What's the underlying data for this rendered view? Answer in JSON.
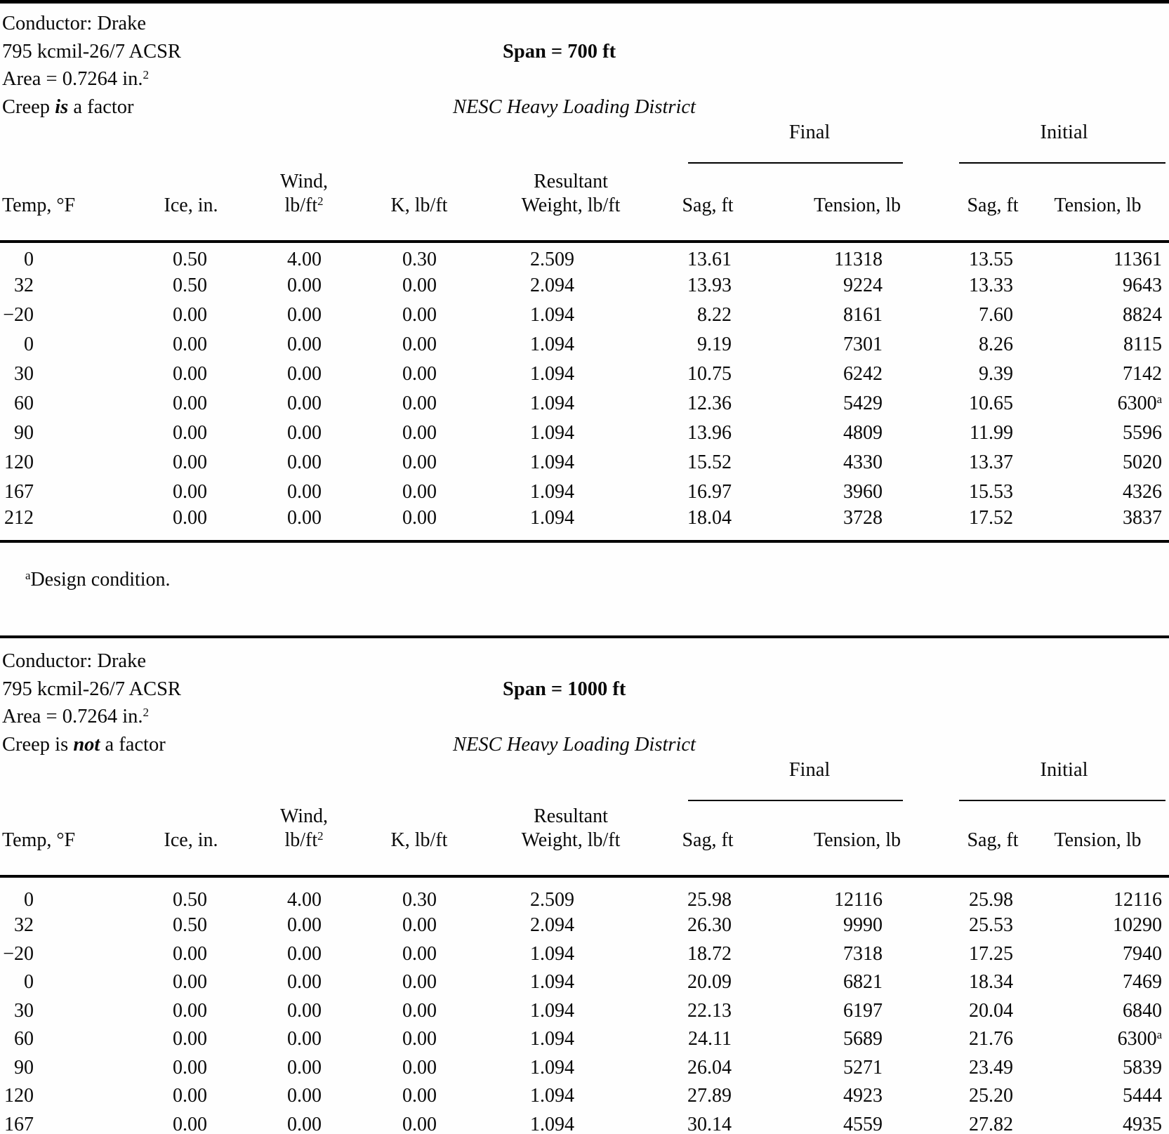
{
  "tables": [
    {
      "conductor": "Conductor: Drake",
      "size": "795 kcmil-26/7 ACSR",
      "span_label": "Span = 700 ft",
      "area_text": "Area = 0.7264 in.",
      "area_sup": "2",
      "creep_pre": "Creep ",
      "creep_emph": "is",
      "creep_post": " a factor",
      "district": "NESC Heavy Loading District",
      "groups": {
        "final": "Final",
        "initial": "Initial"
      },
      "columns": {
        "temp": "Temp, °F",
        "ice": "Ice, in.",
        "wind_line1": "Wind,",
        "wind_line2": "lb/ft",
        "wind_sup": "2",
        "k": "K, lb/ft",
        "resultant_line1": "Resultant",
        "resultant_line2": "Weight, lb/ft",
        "sag": "Sag, ft",
        "tension": "Tension, lb"
      },
      "rows": [
        [
          "0",
          "0.50",
          "4.00",
          "0.30",
          "2.509",
          "13.61",
          "11318",
          "13.55",
          "11361"
        ],
        [
          "32",
          "0.50",
          "0.00",
          "0.00",
          "2.094",
          "13.93",
          "9224",
          "13.33",
          "9643"
        ],
        [
          "−20",
          "0.00",
          "0.00",
          "0.00",
          "1.094",
          "8.22",
          "8161",
          "7.60",
          "8824"
        ],
        [
          "0",
          "0.00",
          "0.00",
          "0.00",
          "1.094",
          "9.19",
          "7301",
          "8.26",
          "8115"
        ],
        [
          "30",
          "0.00",
          "0.00",
          "0.00",
          "1.094",
          "10.75",
          "6242",
          "9.39",
          "7142"
        ],
        [
          "60",
          "0.00",
          "0.00",
          "0.00",
          "1.094",
          "12.36",
          "5429",
          "10.65",
          [
            "6300",
            "a"
          ]
        ],
        [
          "90",
          "0.00",
          "0.00",
          "0.00",
          "1.094",
          "13.96",
          "4809",
          "11.99",
          "5596"
        ],
        [
          "120",
          "0.00",
          "0.00",
          "0.00",
          "1.094",
          "15.52",
          "4330",
          "13.37",
          "5020"
        ],
        [
          "167",
          "0.00",
          "0.00",
          "0.00",
          "1.094",
          "16.97",
          "3960",
          "15.53",
          "4326"
        ],
        [
          "212",
          "0.00",
          "0.00",
          "0.00",
          "1.094",
          "18.04",
          "3728",
          "17.52",
          "3837"
        ]
      ],
      "footnote": {
        "marker": "a",
        "text": "Design condition."
      }
    },
    {
      "conductor": "Conductor: Drake",
      "size": "795 kcmil-26/7 ACSR",
      "span_label": "Span = 1000 ft",
      "area_text": "Area = 0.7264 in.",
      "area_sup": "2",
      "creep_pre": "Creep is ",
      "creep_emph": "not",
      "creep_post": " a factor",
      "district": "NESC Heavy Loading District",
      "groups": {
        "final": "Final",
        "initial": "Initial"
      },
      "columns": {
        "temp": "Temp, °F",
        "ice": "Ice, in.",
        "wind_line1": "Wind,",
        "wind_line2": "lb/ft",
        "wind_sup": "2",
        "k": "K, lb/ft",
        "resultant_line1": "Resultant",
        "resultant_line2": "Weight, lb/ft",
        "sag": "Sag, ft",
        "tension": "Tension, lb"
      },
      "rows": [
        [
          "0",
          "0.50",
          "4.00",
          "0.30",
          "2.509",
          "25.98",
          "12116",
          "25.98",
          "12116"
        ],
        [
          "32",
          "0.50",
          "0.00",
          "0.00",
          "2.094",
          "26.30",
          "9990",
          "25.53",
          "10290"
        ],
        [
          "−20",
          "0.00",
          "0.00",
          "0.00",
          "1.094",
          "18.72",
          "7318",
          "17.25",
          "7940"
        ],
        [
          "0",
          "0.00",
          "0.00",
          "0.00",
          "1.094",
          "20.09",
          "6821",
          "18.34",
          "7469"
        ],
        [
          "30",
          "0.00",
          "0.00",
          "0.00",
          "1.094",
          "22.13",
          "6197",
          "20.04",
          "6840"
        ],
        [
          "60",
          "0.00",
          "0.00",
          "0.00",
          "1.094",
          "24.11",
          "5689",
          "21.76",
          [
            "6300",
            "a"
          ]
        ],
        [
          "90",
          "0.00",
          "0.00",
          "0.00",
          "1.094",
          "26.04",
          "5271",
          "23.49",
          "5839"
        ],
        [
          "120",
          "0.00",
          "0.00",
          "0.00",
          "1.094",
          "27.89",
          "4923",
          "25.20",
          "5444"
        ],
        [
          "167",
          "0.00",
          "0.00",
          "0.00",
          "1.094",
          "30.14",
          "4559",
          "27.82",
          "4935"
        ]
      ]
    }
  ]
}
